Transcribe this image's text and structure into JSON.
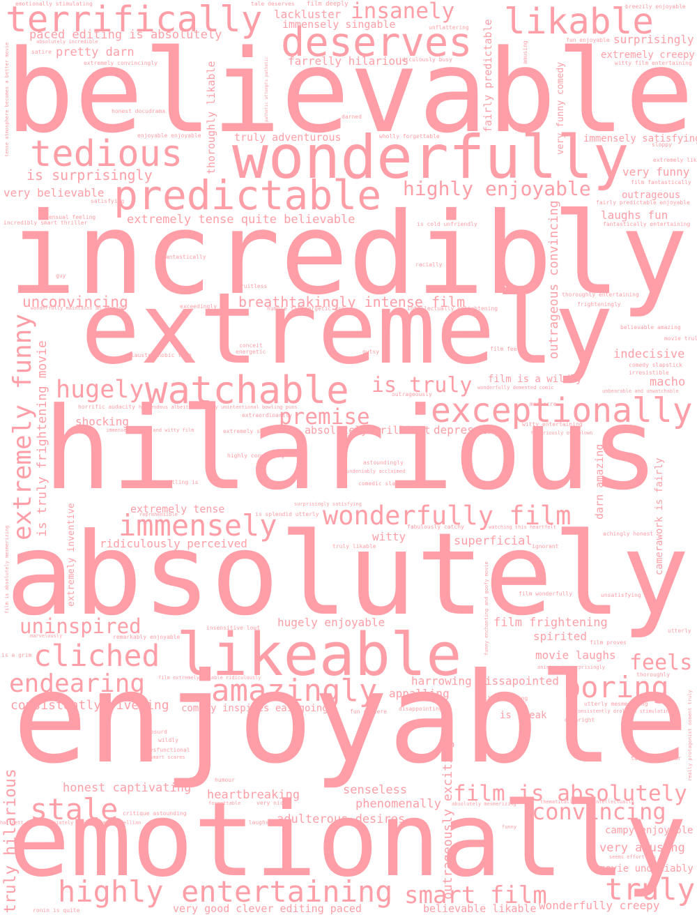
{
  "words": [
    "believable",
    "incredibly",
    "extremely",
    "hilarious",
    "absolutely",
    "enjoyable",
    "emotionally",
    "wonderfully",
    "deserves",
    "terrifically",
    "likable",
    "tedious",
    "predictable",
    "watchable",
    "exceptionally",
    "likeable",
    "amazingly",
    "cliched",
    "boring",
    "immensely",
    "hugely",
    "truly",
    "highly entertaining",
    "smart film",
    "stale",
    "endearing",
    "uninspired",
    "wonderfully film",
    "film is absolutely",
    "convincing",
    "highly enjoyable",
    "is truly",
    "premise",
    "insanely",
    "feels",
    "extremely funny",
    "truly hilarious",
    "outrageously exciting",
    "outrageous convincing",
    "thoroughly likable",
    "fairly predictable",
    "darn amazing",
    "camerawork is fairly",
    "extremely inventive",
    "is truly frightening movie",
    "paced editing is absolutely",
    "lackluster",
    "immensely singable",
    "pretty darn",
    "farrelly hilarious",
    "surprisingly",
    "extremely creepy",
    "very funny comedy",
    "truly adventurous",
    "immensely satisfying",
    "is surprisingly",
    "very funny",
    "very believable",
    "outrageous",
    "laughs fun",
    "extremely tense quite believable",
    "unconvincing",
    "breathtakingly intense film",
    "indecisive",
    "macho",
    "film is a wildly",
    "shocking",
    "absolutely brilliant",
    "depressing",
    "extremely tense",
    "ridiculously perceived",
    "witty",
    "superficial",
    "hugely enjoyable",
    "film frightening",
    "spirited",
    "movie laughs",
    "harrowing dissapointed",
    "appalling",
    "consistently riveting",
    "comedy inspires easygoing",
    "is bleak",
    "honest captivating",
    "heartbreaking",
    "senseless",
    "phenomenally",
    "adulterous desires",
    "campy enjoyable",
    "very amusing",
    "movie undeniably",
    "very good clever editing paced",
    "believable likable",
    "wonderfully creepy",
    "emotionally stimulating",
    "tale deserves",
    "film deeply",
    "breezily enjoyable",
    "absolutely incredible",
    "unflattering",
    "satire",
    "fun enjoyable",
    "amusing",
    "ridiculously busy",
    "extremely convincingly",
    "witty film entertaining",
    "tense atmosphere becomes a better movie",
    "pathetic attempts pathetic",
    "honest docudrama",
    "darned",
    "enjoyable enjoyable",
    "wholly forgettable",
    "sloppy",
    "extremely likable",
    "film fantastically",
    "satisfying",
    "fairly predictable enjoyable",
    "sensual feeling",
    "incredibly smart thriller",
    "is cold unfriendly",
    "fantastically entertaining",
    "fantastically",
    "racially",
    "guy",
    "fruitless",
    "thoroughly entertaining",
    "frighteningly",
    "wonderfully maintains an amusing",
    "exceedingly",
    "humble film",
    "energetic sci",
    "intellectually enlightening",
    "believable amazing",
    "movie truly",
    "conceit",
    "energetic",
    "film feels",
    "gutsy",
    "claustrophobic film",
    "comedy slapstick",
    "irresistible",
    "wonderfully demented comic",
    "mediocre",
    "unbearable and unwatchable",
    "outrageously",
    "horrific audacity",
    "horrendous albeit seemingly unintentional bowling puns",
    "extraordinarily",
    "witty entertaining",
    "immensely funny and witty film",
    "extremely smart",
    "hilariously overblown",
    "highly convincing",
    "astoundingly",
    "undeniably acclaimed",
    "comedic slapstick",
    "unsettling is",
    "surprisingly satisfying",
    "reprehensible",
    "is splendid utterly",
    "fabulously catchy",
    "watching this heartfelt",
    "achingly honest",
    "film is absolutely mesmerizing",
    "truly likable",
    "ignorant",
    "funny enchanting and goofy movie",
    "film wonderfully",
    "unsatisfying",
    "insensitive lout",
    "marvelously",
    "remarkably enjoyable",
    "utterly",
    "film proves",
    "is a grim",
    "aniston is surprisingly",
    "thoroughly",
    "film extremely likable ridiculously",
    "dull unengaging",
    "utterly mesmerising",
    "consistently droll is stimulating",
    "fun sincere",
    "disappointing",
    "really protagonist osment truly",
    "downright",
    "absurd",
    "wildly",
    "dysfunctional",
    "smart scares",
    "thoroughly",
    "talented auteur",
    "humour",
    "forgettable",
    "very nice",
    "absolutely mesmerizing",
    "thematically rich intellectually",
    "critique astounding",
    "hartnett is appropriately cool and machiavellian",
    "plenty laughs",
    "funny",
    "seems effortless",
    "ronin is quite"
  ]
}
